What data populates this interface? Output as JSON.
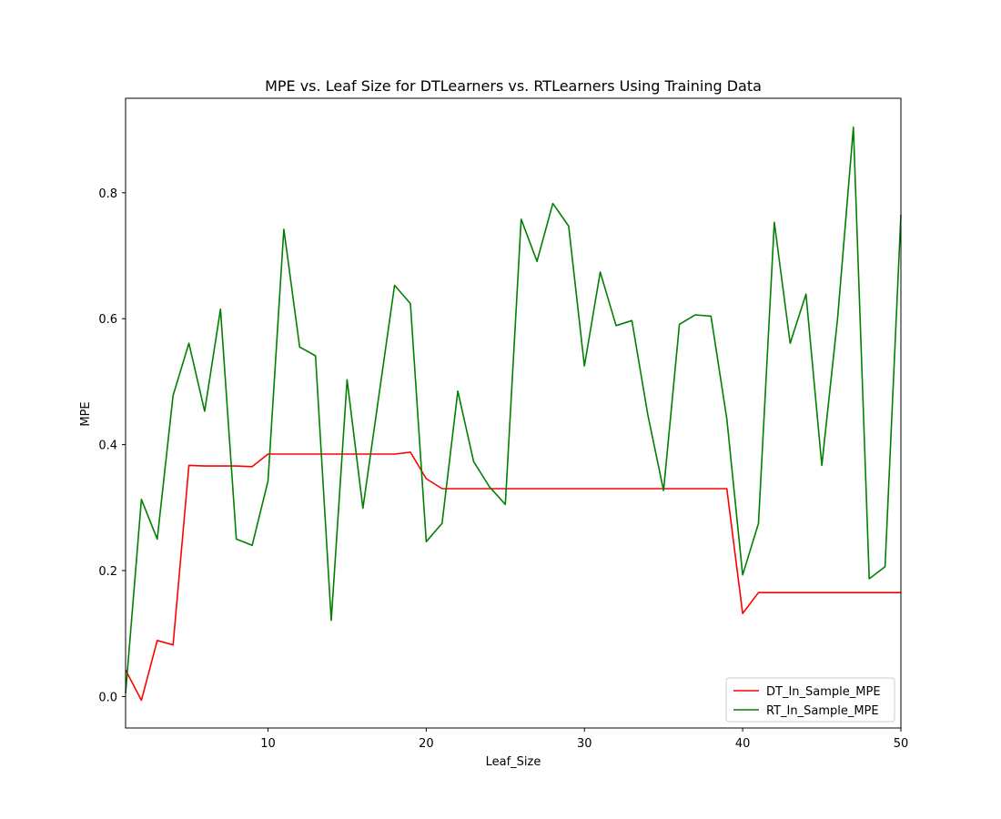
{
  "chart_data": {
    "type": "line",
    "title": "MPE vs. Leaf Size for DTLearners vs. RTLearners Using Training Data",
    "xlabel": "Leaf_Size",
    "ylabel": "MPE",
    "xlim": [
      1,
      50
    ],
    "ylim": [
      -0.05,
      0.95
    ],
    "xticks": [
      10,
      20,
      30,
      40,
      50
    ],
    "yticks": [
      0.0,
      0.2,
      0.4,
      0.6,
      0.8
    ],
    "yticklabels": [
      "0.0",
      "0.2",
      "0.4",
      "0.6",
      "0.8"
    ],
    "grid": false,
    "legend_position": "lower-right",
    "x": [
      1,
      2,
      3,
      4,
      5,
      6,
      7,
      8,
      9,
      10,
      11,
      12,
      13,
      14,
      15,
      16,
      17,
      18,
      19,
      20,
      21,
      22,
      23,
      24,
      25,
      26,
      27,
      28,
      29,
      30,
      31,
      32,
      33,
      34,
      35,
      36,
      37,
      38,
      39,
      40,
      41,
      42,
      43,
      44,
      45,
      46,
      47,
      48,
      49,
      50
    ],
    "series": [
      {
        "name": "DT_In_Sample_MPE",
        "color": "#ff0000",
        "values": [
          0.042,
          -0.006,
          0.089,
          0.082,
          0.367,
          0.366,
          0.366,
          0.366,
          0.365,
          0.385,
          0.385,
          0.385,
          0.385,
          0.385,
          0.385,
          0.385,
          0.385,
          0.385,
          0.388,
          0.346,
          0.33,
          0.33,
          0.33,
          0.33,
          0.33,
          0.33,
          0.33,
          0.33,
          0.33,
          0.33,
          0.33,
          0.33,
          0.33,
          0.33,
          0.33,
          0.33,
          0.33,
          0.33,
          0.33,
          0.132,
          0.165,
          0.165,
          0.165,
          0.165,
          0.165,
          0.165,
          0.165,
          0.165,
          0.165,
          0.165
        ]
      },
      {
        "name": "RT_In_Sample_MPE",
        "color": "#008000",
        "values": [
          0.005,
          0.313,
          0.25,
          0.478,
          0.561,
          0.453,
          0.615,
          0.25,
          0.24,
          0.342,
          0.742,
          0.555,
          0.541,
          0.121,
          0.503,
          0.299,
          0.476,
          0.653,
          0.624,
          0.246,
          0.275,
          0.485,
          0.373,
          0.333,
          0.305,
          0.758,
          0.691,
          0.783,
          0.747,
          0.525,
          0.674,
          0.589,
          0.597,
          0.448,
          0.327,
          0.591,
          0.606,
          0.604,
          0.441,
          0.193,
          0.275,
          0.753,
          0.561,
          0.639,
          0.367,
          0.6,
          0.904,
          0.187,
          0.206,
          0.765
        ]
      }
    ]
  }
}
